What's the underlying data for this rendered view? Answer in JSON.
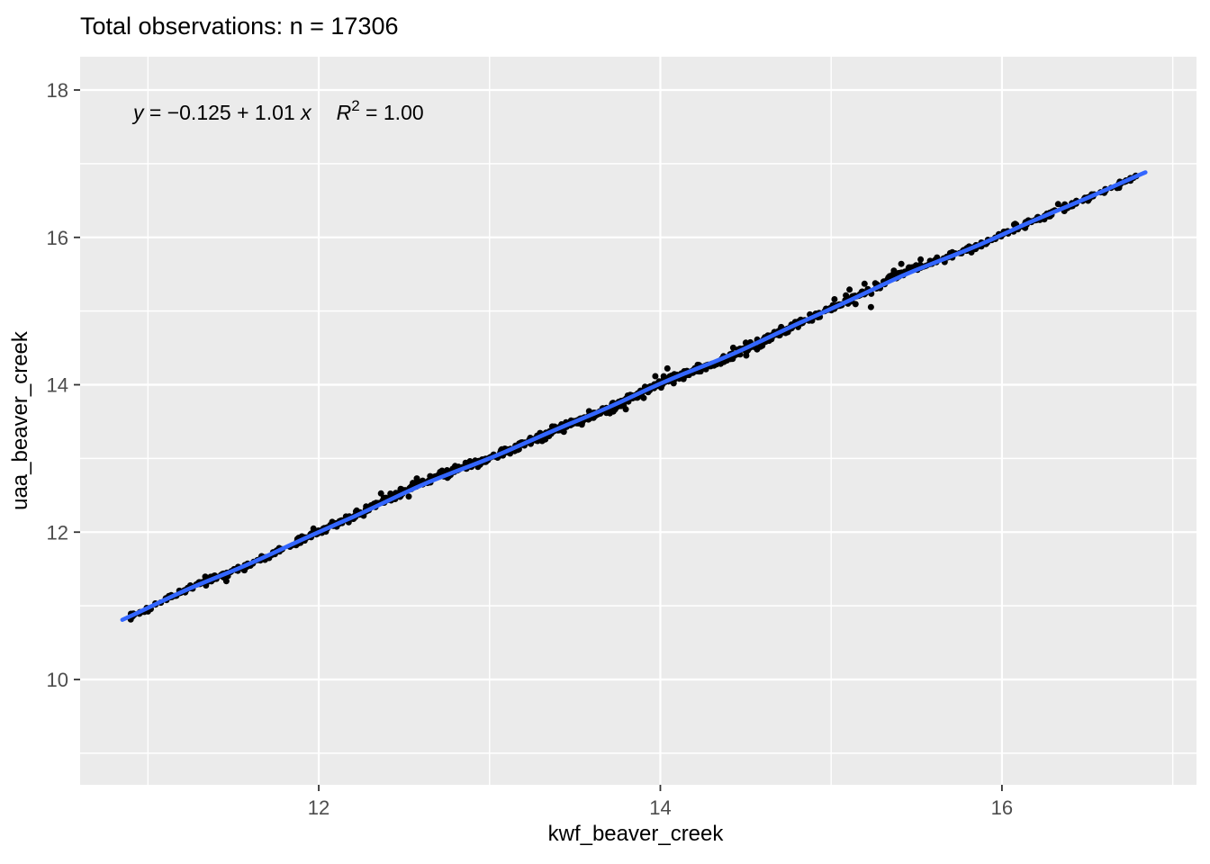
{
  "title": "Total observations: n = 17306",
  "annotation": {
    "y_var": "y",
    "body": " = −0.125 + 1.01 ",
    "x_var": "x",
    "r_var": "R",
    "r_sup": "2",
    "r_eq": " = 1.00"
  },
  "chart_data": {
    "type": "scatter",
    "title": "Total observations: n = 17306",
    "xlabel": "kwf_beaver_creek",
    "ylabel": "uaa_beaver_creek",
    "n_total": 17306,
    "regression": {
      "intercept": -0.125,
      "slope": 1.01,
      "r_squared": 1.0
    },
    "equation_text": "y = −0.125 + 1.01 x   R² = 1.00",
    "x_ticks": [
      12,
      14,
      16
    ],
    "y_ticks": [
      10,
      12,
      14,
      16,
      18
    ],
    "x_minor_ticks": [
      11,
      13,
      15,
      17
    ],
    "y_minor_ticks": [
      9,
      11,
      13,
      15,
      17
    ],
    "xlim": [
      10.603,
      17.139
    ],
    "ylim": [
      8.571,
      18.452
    ],
    "x_data_range": [
      10.87,
      16.82
    ],
    "grid": true,
    "legend": "none",
    "points_rendered": 1150,
    "seed": 42,
    "noise_sd": 0.024,
    "outlier_rate": 0.08,
    "outlier_sd": 0.065,
    "point_radius": 3.5,
    "point_color": "#000000",
    "line_color": "#3366FF",
    "line_width": 4.6,
    "panel_bg": "#EBEBEB",
    "grid_color": "#FFFFFF",
    "tick_mark_color": "#333333",
    "tick_label_color": "#4D4D4D",
    "axis_title_color": "#000000",
    "title_color": "#000000"
  }
}
